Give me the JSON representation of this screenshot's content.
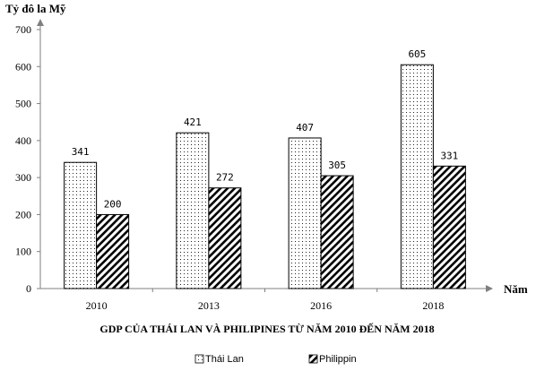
{
  "chart_data": {
    "type": "bar",
    "title": "GDP CỦA  THÁI LAN VÀ PHILIPINES TỪ  NĂM  2010 ĐẾN NĂM  2018",
    "ylabel": "Tỷ đô la Mỹ",
    "xlabel": "Năm",
    "categories": [
      "2010",
      "2013",
      "2016",
      "2018"
    ],
    "ylim": [
      0,
      700
    ],
    "yticks": [
      "0",
      "100",
      "200",
      "300",
      "400",
      "500",
      "600",
      "700"
    ],
    "grid": false,
    "legend_position": "bottom-center",
    "series": [
      {
        "name": "Thái Lan",
        "pattern": "dots",
        "values": [
          341,
          421,
          407,
          605
        ],
        "labels": [
          "341",
          "421",
          "407",
          "605"
        ]
      },
      {
        "name": "Philippin",
        "pattern": "diagonal-stripes",
        "values": [
          200,
          272,
          305,
          331
        ],
        "labels": [
          "200",
          "272",
          "305",
          "331"
        ]
      }
    ]
  }
}
